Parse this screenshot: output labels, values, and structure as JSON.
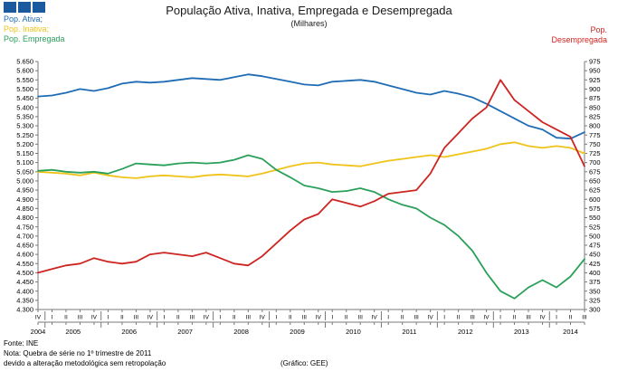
{
  "header": {
    "title": "População Ativa, Inativa, Empregada e Desempregada",
    "subtitle": "(Milhares)",
    "logo": {
      "color": "#1c5aa0"
    },
    "legend_left": [
      {
        "label": "Pop. Ativa;",
        "color": "#1f6cb5"
      },
      {
        "label": "Pop. Inativa;",
        "color": "#efc319"
      },
      {
        "label": "Pop. Empregada",
        "color": "#2ba05a"
      }
    ],
    "legend_right": {
      "line1": "Pop.",
      "line2": "Desempregada",
      "color": "#cd2520"
    }
  },
  "footer": {
    "fonte": "Fonte: INE",
    "nota_line1": "Nota: Quebra de série no 1º trimestre de 2011",
    "nota_line2": "devido a alteração metodológica sem retropolação",
    "grafico": "(Gráfico: GEE)"
  },
  "chart_data": {
    "type": "line",
    "title": "População Ativa, Inativa, Empregada e Desempregada",
    "subtitle": "(Milhares)",
    "grid": false,
    "legend_position": "top",
    "x_quarters": [
      "IV",
      "I",
      "II",
      "III",
      "IV",
      "I",
      "II",
      "III",
      "IV",
      "I",
      "II",
      "III",
      "IV",
      "I",
      "II",
      "III",
      "IV",
      "I",
      "II",
      "III",
      "IV",
      "I",
      "II",
      "III",
      "IV",
      "I",
      "II",
      "III",
      "IV",
      "I",
      "II",
      "III",
      "IV",
      "I",
      "II",
      "III",
      "IV",
      "I",
      "II",
      "III"
    ],
    "years": [
      {
        "label": "2004",
        "count": 1
      },
      {
        "label": "2005",
        "count": 4
      },
      {
        "label": "2006",
        "count": 4
      },
      {
        "label": "2007",
        "count": 4
      },
      {
        "label": "2008",
        "count": 4
      },
      {
        "label": "2009",
        "count": 4
      },
      {
        "label": "2010",
        "count": 4
      },
      {
        "label": "2011",
        "count": 4
      },
      {
        "label": "2012",
        "count": 4
      },
      {
        "label": "2013",
        "count": 4
      },
      {
        "label": "2014",
        "count": 3
      }
    ],
    "axes": {
      "left": {
        "min": 4300,
        "max": 5650,
        "step": 50,
        "ticks": [
          "5.650",
          "5.600",
          "5.550",
          "5.500",
          "5.450",
          "5.400",
          "5.350",
          "5.300",
          "5.250",
          "5.200",
          "5.150",
          "5.100",
          "5.050",
          "5.000",
          "4.950",
          "4.900",
          "4.850",
          "4.800",
          "4.750",
          "4.700",
          "4.650",
          "4.600",
          "4.550",
          "4.500",
          "4.450",
          "4.400",
          "4.350",
          "4.300"
        ]
      },
      "right": {
        "min": 300,
        "max": 975,
        "step": 25,
        "ticks": [
          "975",
          "950",
          "925",
          "900",
          "875",
          "850",
          "825",
          "800",
          "775",
          "750",
          "725",
          "700",
          "675",
          "650",
          "625",
          "600",
          "575",
          "550",
          "525",
          "500",
          "475",
          "450",
          "425",
          "400",
          "375",
          "350",
          "325",
          "300"
        ]
      }
    },
    "series": [
      {
        "name": "Pop. Inativa",
        "axis": "left",
        "color": "#efc319",
        "values": [
          5050,
          5045,
          5040,
          5030,
          5045,
          5030,
          5020,
          5015,
          5025,
          5030,
          5025,
          5020,
          5030,
          5035,
          5030,
          5025,
          5040,
          5060,
          5080,
          5095,
          5100,
          5090,
          5085,
          5080,
          5095,
          5110,
          5120,
          5130,
          5140,
          5130,
          5145,
          5160,
          5175,
          5200,
          5210,
          5190,
          5180,
          5190,
          5180,
          5150
        ]
      },
      {
        "name": "Pop. Empregada",
        "axis": "left",
        "color": "#2ba05a",
        "values": [
          5055,
          5060,
          5050,
          5045,
          5050,
          5040,
          5065,
          5095,
          5090,
          5085,
          5095,
          5100,
          5095,
          5100,
          5115,
          5140,
          5120,
          5060,
          5020,
          4975,
          4960,
          4940,
          4945,
          4960,
          4940,
          4900,
          4870,
          4850,
          4800,
          4760,
          4700,
          4620,
          4500,
          4400,
          4360,
          4420,
          4460,
          4420,
          4480,
          4575
        ]
      },
      {
        "name": "Pop. Ativa",
        "axis": "left",
        "color": "#1f6cb5",
        "values": [
          5460,
          5465,
          5480,
          5500,
          5490,
          5505,
          5530,
          5540,
          5535,
          5540,
          5550,
          5560,
          5555,
          5550,
          5565,
          5580,
          5570,
          5555,
          5540,
          5525,
          5520,
          5540,
          5545,
          5550,
          5540,
          5520,
          5500,
          5480,
          5470,
          5490,
          5475,
          5455,
          5420,
          5380,
          5340,
          5300,
          5280,
          5235,
          5230,
          5265
        ]
      },
      {
        "name": "Pop. Desempregada",
        "axis": "right",
        "color": "#cd2520",
        "values": [
          400,
          410,
          420,
          425,
          440,
          430,
          425,
          430,
          450,
          455,
          450,
          445,
          455,
          440,
          425,
          420,
          445,
          480,
          515,
          545,
          560,
          600,
          590,
          580,
          595,
          615,
          620,
          625,
          670,
          740,
          780,
          820,
          850,
          925,
          870,
          840,
          810,
          790,
          770,
          690
        ]
      }
    ]
  }
}
